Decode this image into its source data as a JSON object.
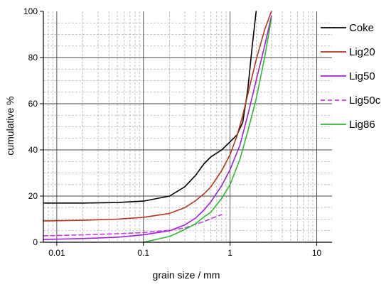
{
  "chart_data": {
    "type": "line",
    "xlabel": "grain size / mm",
    "ylabel": "cumulative %",
    "x_scale": "log",
    "xlim": [
      0.007,
      15
    ],
    "ylim": [
      0,
      100
    ],
    "x_ticks": [
      {
        "value": 0.01,
        "label": "0.01"
      },
      {
        "value": 0.1,
        "label": "0.1"
      },
      {
        "value": 1,
        "label": "1"
      },
      {
        "value": 10,
        "label": "10"
      }
    ],
    "y_ticks": [
      {
        "value": 0,
        "label": "0"
      },
      {
        "value": 20,
        "label": "20"
      },
      {
        "value": 40,
        "label": "40"
      },
      {
        "value": 60,
        "label": "60"
      },
      {
        "value": 80,
        "label": "80"
      },
      {
        "value": 100,
        "label": "100"
      }
    ],
    "grid": true,
    "legend_position": "right",
    "series": [
      {
        "name": "Coke",
        "color": "#000000",
        "dash": false,
        "points": [
          [
            0.007,
            17
          ],
          [
            0.02,
            17
          ],
          [
            0.05,
            17.2
          ],
          [
            0.1,
            17.8
          ],
          [
            0.2,
            20
          ],
          [
            0.3,
            24
          ],
          [
            0.4,
            29
          ],
          [
            0.5,
            34
          ],
          [
            0.6,
            37
          ],
          [
            0.8,
            40
          ],
          [
            1.0,
            43.5
          ],
          [
            1.2,
            46.5
          ],
          [
            1.4,
            52
          ],
          [
            1.6,
            66
          ],
          [
            1.8,
            85
          ],
          [
            2.0,
            100
          ]
        ]
      },
      {
        "name": "Lig20",
        "color": "#b5341e",
        "dash": false,
        "points": [
          [
            0.007,
            9.2
          ],
          [
            0.02,
            9.5
          ],
          [
            0.05,
            10
          ],
          [
            0.1,
            10.8
          ],
          [
            0.2,
            12.5
          ],
          [
            0.3,
            15
          ],
          [
            0.4,
            18
          ],
          [
            0.5,
            21
          ],
          [
            0.6,
            24
          ],
          [
            0.8,
            31
          ],
          [
            1.0,
            38
          ],
          [
            1.2,
            46
          ],
          [
            1.4,
            55
          ],
          [
            1.6,
            64
          ],
          [
            2.0,
            79
          ],
          [
            2.5,
            92
          ],
          [
            3.0,
            100
          ]
        ]
      },
      {
        "name": "Lig50",
        "color": "#a020e0",
        "dash": false,
        "points": [
          [
            0.007,
            1.2
          ],
          [
            0.02,
            1.6
          ],
          [
            0.05,
            2.2
          ],
          [
            0.1,
            3.2
          ],
          [
            0.2,
            5
          ],
          [
            0.3,
            7.5
          ],
          [
            0.4,
            10.5
          ],
          [
            0.5,
            14
          ],
          [
            0.6,
            17.5
          ],
          [
            0.8,
            24.5
          ],
          [
            1.0,
            31.5
          ],
          [
            1.3,
            42
          ],
          [
            1.6,
            55
          ],
          [
            2.0,
            70
          ],
          [
            2.5,
            85
          ],
          [
            3.0,
            98
          ]
        ]
      },
      {
        "name": "Lig50c",
        "color": "#c63ee0",
        "dash": true,
        "points": [
          [
            0.007,
            2.8
          ],
          [
            0.02,
            3.2
          ],
          [
            0.05,
            3.7
          ],
          [
            0.1,
            4.2
          ],
          [
            0.2,
            5.2
          ],
          [
            0.3,
            6.2
          ],
          [
            0.5,
            9
          ],
          [
            0.8,
            12
          ]
        ]
      },
      {
        "name": "Lig86",
        "color": "#2dbb2d",
        "dash": false,
        "points": [
          [
            0.1,
            0
          ],
          [
            0.2,
            2.5
          ],
          [
            0.3,
            5.5
          ],
          [
            0.4,
            8
          ],
          [
            0.5,
            11
          ],
          [
            0.6,
            13
          ],
          [
            0.8,
            19
          ],
          [
            1.0,
            25
          ],
          [
            1.3,
            36
          ],
          [
            1.6,
            48
          ],
          [
            2.0,
            62
          ],
          [
            2.5,
            80
          ],
          [
            3.0,
            97
          ]
        ]
      }
    ]
  }
}
